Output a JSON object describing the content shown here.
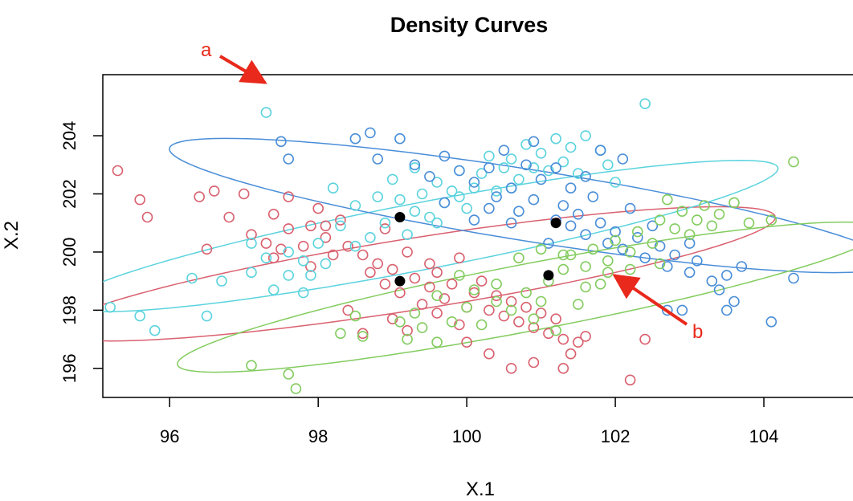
{
  "chart_data": {
    "type": "scatter",
    "title": "Density Curves",
    "xlabel": "X.1",
    "ylabel": "X.2",
    "xlim": [
      95.1,
      105.2
    ],
    "ylim": [
      195,
      206.1
    ],
    "xticks": [
      96,
      98,
      100,
      102,
      104
    ],
    "yticks": [
      196,
      198,
      200,
      202,
      204
    ],
    "grid": false,
    "legend": "none",
    "series": [
      {
        "color": "#d9616f",
        "center": [
          99.1,
          199.0
        ],
        "ellipse": {
          "cx": 99.3,
          "cy": 199.25,
          "rx": 5.25,
          "ry": 1.15,
          "angle_deg": 23
        },
        "points": [
          [
            95.3,
            202.8
          ],
          [
            95.6,
            201.8
          ],
          [
            95.7,
            201.2
          ],
          [
            96.4,
            201.9
          ],
          [
            96.6,
            202.1
          ],
          [
            96.5,
            200.1
          ],
          [
            96.8,
            201.2
          ],
          [
            97.0,
            202.0
          ],
          [
            97.1,
            200.6
          ],
          [
            97.3,
            200.3
          ],
          [
            97.4,
            199.8
          ],
          [
            97.5,
            200.1
          ],
          [
            97.6,
            200.8
          ],
          [
            97.8,
            200.2
          ],
          [
            98.0,
            201.5
          ],
          [
            97.4,
            201.3
          ],
          [
            97.6,
            201.9
          ],
          [
            97.9,
            200.9
          ],
          [
            98.1,
            200.5
          ],
          [
            98.3,
            201.1
          ],
          [
            98.4,
            200.2
          ],
          [
            98.6,
            199.9
          ],
          [
            98.7,
            199.3
          ],
          [
            98.8,
            199.6
          ],
          [
            98.9,
            198.9
          ],
          [
            99.0,
            199.4
          ],
          [
            99.1,
            198.6
          ],
          [
            99.3,
            199.1
          ],
          [
            99.4,
            198.2
          ],
          [
            99.5,
            198.8
          ],
          [
            99.6,
            199.3
          ],
          [
            99.7,
            198.4
          ],
          [
            99.8,
            198.9
          ],
          [
            99.9,
            199.8
          ],
          [
            100.0,
            198.1
          ],
          [
            100.1,
            198.6
          ],
          [
            100.2,
            199.0
          ],
          [
            100.3,
            198.0
          ],
          [
            100.4,
            198.5
          ],
          [
            100.5,
            197.8
          ],
          [
            100.6,
            198.3
          ],
          [
            100.7,
            197.6
          ],
          [
            100.8,
            198.1
          ],
          [
            100.9,
            197.4
          ],
          [
            101.0,
            197.9
          ],
          [
            101.1,
            197.2
          ],
          [
            101.2,
            197.7
          ],
          [
            101.3,
            197.0
          ],
          [
            101.4,
            196.5
          ],
          [
            101.5,
            196.9
          ],
          [
            101.6,
            197.1
          ],
          [
            101.3,
            196.0
          ],
          [
            100.9,
            196.2
          ],
          [
            100.6,
            196.0
          ],
          [
            102.4,
            197.0
          ],
          [
            102.2,
            195.6
          ],
          [
            98.4,
            198.0
          ],
          [
            98.6,
            197.2
          ],
          [
            99.0,
            197.7
          ],
          [
            99.2,
            197.3
          ],
          [
            99.6,
            197.9
          ],
          [
            99.9,
            197.5
          ],
          [
            100.0,
            196.9
          ],
          [
            100.3,
            196.5
          ],
          [
            98.9,
            200.8
          ],
          [
            99.2,
            200.0
          ],
          [
            99.5,
            199.6
          ],
          [
            97.9,
            199.5
          ],
          [
            98.2,
            199.9
          ],
          [
            98.1,
            200.9
          ]
        ]
      },
      {
        "color": "#5bd3de",
        "center": [
          99.1,
          201.2
        ],
        "ellipse": {
          "cx": 99.4,
          "cy": 200.55,
          "rx": 5.35,
          "ry": 1.05,
          "angle_deg": 27
        },
        "points": [
          [
            97.3,
            204.8
          ],
          [
            95.2,
            198.1
          ],
          [
            95.6,
            197.8
          ],
          [
            95.8,
            197.3
          ],
          [
            96.3,
            199.1
          ],
          [
            96.5,
            197.8
          ],
          [
            96.7,
            199.0
          ],
          [
            97.1,
            199.3
          ],
          [
            97.4,
            198.7
          ],
          [
            97.6,
            199.2
          ],
          [
            97.8,
            199.7
          ],
          [
            98.0,
            200.3
          ],
          [
            98.3,
            200.9
          ],
          [
            98.5,
            201.6
          ],
          [
            98.7,
            200.5
          ],
          [
            98.9,
            201.0
          ],
          [
            99.1,
            201.8
          ],
          [
            99.3,
            201.4
          ],
          [
            99.4,
            202.0
          ],
          [
            99.5,
            201.2
          ],
          [
            99.6,
            202.4
          ],
          [
            99.7,
            201.7
          ],
          [
            99.8,
            202.1
          ],
          [
            99.9,
            202.8
          ],
          [
            100.0,
            201.5
          ],
          [
            100.1,
            202.2
          ],
          [
            100.2,
            202.7
          ],
          [
            100.4,
            202.1
          ],
          [
            100.5,
            202.9
          ],
          [
            100.6,
            203.2
          ],
          [
            100.7,
            202.5
          ],
          [
            100.8,
            203.7
          ],
          [
            100.9,
            202.9
          ],
          [
            101.0,
            203.4
          ],
          [
            101.1,
            202.8
          ],
          [
            101.2,
            203.9
          ],
          [
            101.3,
            203.1
          ],
          [
            101.4,
            203.6
          ],
          [
            101.5,
            202.7
          ],
          [
            101.6,
            204.0
          ],
          [
            101.8,
            203.5
          ],
          [
            101.9,
            203.0
          ],
          [
            102.0,
            202.4
          ],
          [
            102.4,
            205.1
          ],
          [
            98.2,
            202.2
          ],
          [
            98.5,
            200.2
          ],
          [
            97.9,
            199.2
          ],
          [
            97.6,
            200.0
          ],
          [
            97.3,
            199.8
          ],
          [
            97.1,
            200.3
          ],
          [
            99.2,
            200.6
          ],
          [
            99.6,
            201.0
          ],
          [
            99.9,
            201.9
          ],
          [
            100.3,
            203.3
          ],
          [
            100.6,
            202.2
          ],
          [
            98.8,
            201.9
          ],
          [
            99.0,
            202.5
          ],
          [
            99.3,
            202.9
          ],
          [
            97.8,
            198.6
          ],
          [
            98.1,
            199.6
          ]
        ]
      },
      {
        "color": "#4a8ed8",
        "center": [
          101.2,
          201.0
        ],
        "ellipse": {
          "cx": 100.85,
          "cy": 201.6,
          "rx": 5.25,
          "ry": 1.15,
          "angle_deg": -23
        },
        "points": [
          [
            97.5,
            203.8
          ],
          [
            97.6,
            203.2
          ],
          [
            98.5,
            203.9
          ],
          [
            98.7,
            204.1
          ],
          [
            99.1,
            203.9
          ],
          [
            98.8,
            203.2
          ],
          [
            99.3,
            203.0
          ],
          [
            99.5,
            202.6
          ],
          [
            99.7,
            203.3
          ],
          [
            99.9,
            202.8
          ],
          [
            100.1,
            202.4
          ],
          [
            100.3,
            202.9
          ],
          [
            100.4,
            201.9
          ],
          [
            100.6,
            202.2
          ],
          [
            100.7,
            201.4
          ],
          [
            100.9,
            201.8
          ],
          [
            101.0,
            202.5
          ],
          [
            101.2,
            201.1
          ],
          [
            101.3,
            201.6
          ],
          [
            101.4,
            200.9
          ],
          [
            101.5,
            201.3
          ],
          [
            101.6,
            200.6
          ],
          [
            101.8,
            201.0
          ],
          [
            101.9,
            200.3
          ],
          [
            102.0,
            200.7
          ],
          [
            102.1,
            200.1
          ],
          [
            102.3,
            200.5
          ],
          [
            102.4,
            199.8
          ],
          [
            102.6,
            200.2
          ],
          [
            102.7,
            199.5
          ],
          [
            102.8,
            199.9
          ],
          [
            103.0,
            199.3
          ],
          [
            103.1,
            199.7
          ],
          [
            103.3,
            199.0
          ],
          [
            103.4,
            198.7
          ],
          [
            103.5,
            199.2
          ],
          [
            103.6,
            198.3
          ],
          [
            103.7,
            199.5
          ],
          [
            104.4,
            199.1
          ],
          [
            104.1,
            197.6
          ],
          [
            102.9,
            198.0
          ],
          [
            103.5,
            198.0
          ],
          [
            102.7,
            198.0
          ],
          [
            101.4,
            202.2
          ],
          [
            101.6,
            202.6
          ],
          [
            101.8,
            203.5
          ],
          [
            102.1,
            203.2
          ],
          [
            100.8,
            203.0
          ],
          [
            100.5,
            203.5
          ],
          [
            100.9,
            203.8
          ],
          [
            101.2,
            202.9
          ],
          [
            101.7,
            201.9
          ],
          [
            102.2,
            201.5
          ],
          [
            102.5,
            200.9
          ],
          [
            103.0,
            200.3
          ],
          [
            101.1,
            200.3
          ],
          [
            100.6,
            201.0
          ],
          [
            100.3,
            201.5
          ],
          [
            99.7,
            201.7
          ],
          [
            100.1,
            201.1
          ]
        ]
      },
      {
        "color": "#83cc5f",
        "center": [
          101.1,
          199.2
        ],
        "ellipse": {
          "cx": 100.85,
          "cy": 198.45,
          "rx": 5.3,
          "ry": 1.05,
          "angle_deg": 27
        },
        "points": [
          [
            97.1,
            196.1
          ],
          [
            97.6,
            195.8
          ],
          [
            97.7,
            195.3
          ],
          [
            98.3,
            197.2
          ],
          [
            98.6,
            197.1
          ],
          [
            98.5,
            197.8
          ],
          [
            99.2,
            197.0
          ],
          [
            99.3,
            197.9
          ],
          [
            99.6,
            196.9
          ],
          [
            99.8,
            197.6
          ],
          [
            100.0,
            198.1
          ],
          [
            100.2,
            197.5
          ],
          [
            100.4,
            198.3
          ],
          [
            100.6,
            198.0
          ],
          [
            100.8,
            198.6
          ],
          [
            101.0,
            198.3
          ],
          [
            101.1,
            199.0
          ],
          [
            101.3,
            199.4
          ],
          [
            101.4,
            199.9
          ],
          [
            101.6,
            199.5
          ],
          [
            101.7,
            200.1
          ],
          [
            101.9,
            199.7
          ],
          [
            102.0,
            200.4
          ],
          [
            102.2,
            200.0
          ],
          [
            102.3,
            200.7
          ],
          [
            102.5,
            200.3
          ],
          [
            102.6,
            201.1
          ],
          [
            102.8,
            200.8
          ],
          [
            102.9,
            201.4
          ],
          [
            103.1,
            201.1
          ],
          [
            103.2,
            201.6
          ],
          [
            103.3,
            200.9
          ],
          [
            103.4,
            201.3
          ],
          [
            103.6,
            201.7
          ],
          [
            103.8,
            201.0
          ],
          [
            104.1,
            201.1
          ],
          [
            104.4,
            203.1
          ],
          [
            102.6,
            199.6
          ],
          [
            101.9,
            199.3
          ],
          [
            101.6,
            198.8
          ],
          [
            101.3,
            199.9
          ],
          [
            101.0,
            200.1
          ],
          [
            100.7,
            199.8
          ],
          [
            100.4,
            198.9
          ],
          [
            100.1,
            198.7
          ],
          [
            99.9,
            199.2
          ],
          [
            99.6,
            198.5
          ],
          [
            99.4,
            197.4
          ],
          [
            99.1,
            197.6
          ],
          [
            100.9,
            197.7
          ],
          [
            101.2,
            197.3
          ],
          [
            101.5,
            198.2
          ],
          [
            101.8,
            198.9
          ],
          [
            102.2,
            199.4
          ],
          [
            102.7,
            201.8
          ],
          [
            103.0,
            200.6
          ]
        ]
      }
    ],
    "centroids": [
      [
        99.1,
        201.2
      ],
      [
        99.1,
        199.0
      ],
      [
        101.2,
        201.0
      ],
      [
        101.1,
        199.2
      ]
    ],
    "annotations": [
      {
        "label": "a",
        "color": "#e8291c"
      },
      {
        "label": "b",
        "color": "#e8291c"
      }
    ]
  }
}
